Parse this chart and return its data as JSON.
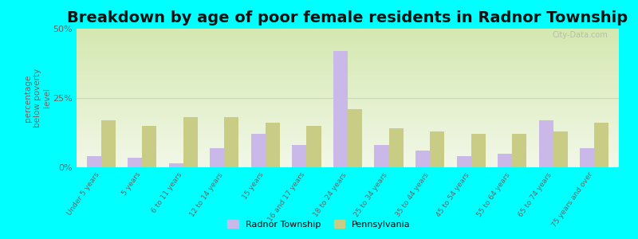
{
  "title": "Breakdown by age of poor female residents in Radnor Township",
  "categories": [
    "Under 5 years",
    "5 years",
    "6 to 11 years",
    "12 to 14 years",
    "15 years",
    "16 and 17 years",
    "18 to 24 years",
    "25 to 34 years",
    "35 to 44 years",
    "45 to 54 years",
    "55 to 64 years",
    "65 to 74 years",
    "75 years and over"
  ],
  "radnor": [
    4,
    3.5,
    1.5,
    7,
    12,
    8,
    42,
    8,
    6,
    4,
    5,
    17,
    7
  ],
  "pennsylvania": [
    17,
    15,
    18,
    18,
    16,
    15,
    21,
    14,
    13,
    12,
    12,
    13,
    16
  ],
  "radnor_color": "#c9b8e8",
  "pennsylvania_color": "#c8cc85",
  "plot_bg_top": "#d4e8b0",
  "plot_bg_bottom": "#f2f8e8",
  "outer_bg": "#00ffff",
  "ylabel_line1": "percentage",
  "ylabel_line2": "below poverty",
  "ylabel_line3": "level",
  "ylim": [
    0,
    50
  ],
  "yticks": [
    0,
    25,
    50
  ],
  "ytick_labels": [
    "0%",
    "25%",
    "50%"
  ],
  "title_fontsize": 14,
  "bar_width": 0.35,
  "legend_radnor": "Radnor Township",
  "legend_pennsylvania": "Pennsylvania",
  "watermark": "City-Data.com",
  "ylabel_color": "#666666",
  "tick_color": "#666666",
  "grid_color": "#e0e8d0"
}
